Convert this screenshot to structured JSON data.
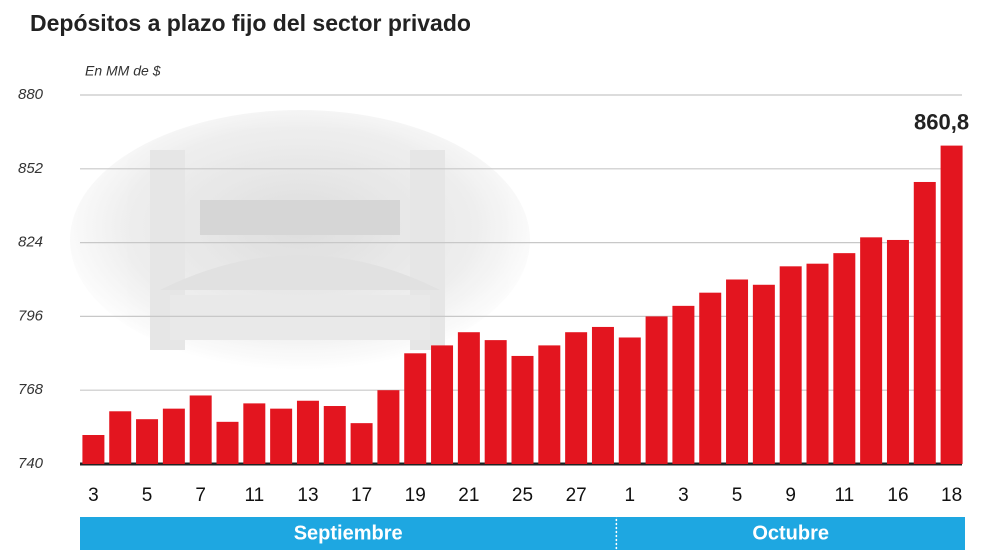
{
  "chart_data": {
    "type": "bar",
    "title": "Depósitos a plazo fijo del sector privado",
    "subtitle": "En MM de $",
    "categories": [
      "3",
      null,
      "5",
      null,
      "7",
      null,
      "11",
      null,
      "13",
      null,
      "17",
      null,
      "19",
      null,
      "21",
      null,
      "25",
      null,
      "27",
      null,
      "1",
      null,
      "3",
      null,
      "5",
      null,
      "9",
      null,
      "11",
      null,
      "16",
      null,
      "18"
    ],
    "values": [
      751,
      760,
      757,
      761,
      766,
      756,
      763,
      761,
      764,
      762,
      755.5,
      768,
      782,
      785,
      790,
      787,
      781,
      785,
      790,
      792,
      788,
      796,
      800,
      805,
      810,
      808,
      815,
      816,
      820,
      826,
      825,
      847,
      860.8
    ],
    "value_labels": [
      null,
      null,
      null,
      null,
      null,
      null,
      null,
      null,
      null,
      null,
      null,
      null,
      null,
      null,
      null,
      null,
      null,
      null,
      null,
      null,
      null,
      null,
      null,
      null,
      null,
      null,
      null,
      null,
      null,
      null,
      null,
      null,
      "860,8"
    ],
    "color": "#e3151f",
    "groups": [
      {
        "name": "Septiembre",
        "bars": 20
      },
      {
        "name": "Octubre",
        "bars": 13
      }
    ],
    "group_color": "#1ea7e1",
    "ylim": [
      740,
      880
    ],
    "yticks": [
      740,
      768,
      796,
      824,
      852,
      880
    ],
    "grid": true
  }
}
